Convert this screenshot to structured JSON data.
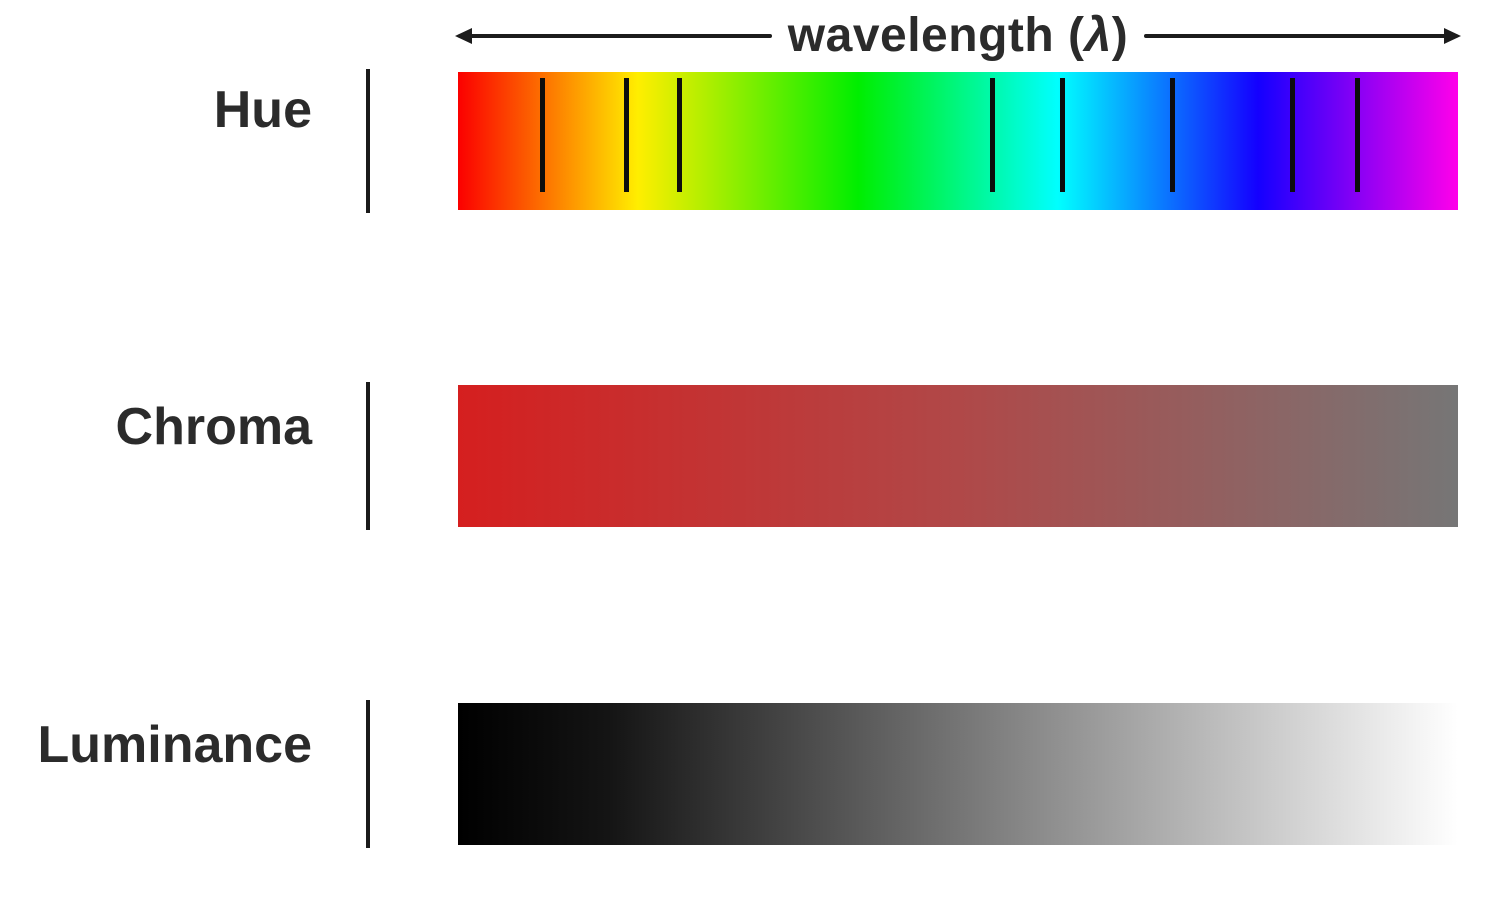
{
  "header": {
    "label_before_lambda": "wavelength (",
    "lambda_symbol": "λ",
    "label_after_lambda": ")"
  },
  "rows": [
    {
      "id": "hue",
      "label": "Hue"
    },
    {
      "id": "chroma",
      "label": "Chroma"
    },
    {
      "id": "luminance",
      "label": "Luminance"
    }
  ],
  "hue_bar": {
    "gradient_stops": [
      "#fb0000 0%",
      "#ffee00 18%",
      "#00ee00 40%",
      "#00ffff 60%",
      "#1400ff 80%",
      "#ff00ea 100%"
    ],
    "tick_positions_pct": [
      8.2,
      16.6,
      21.9,
      53.2,
      60.2,
      71.2,
      83.2,
      89.7
    ]
  },
  "chroma_bar": {
    "gradient_stops": [
      "#d51f1f 0%",
      "#b04848 50%",
      "#767676 100%"
    ]
  },
  "luminance_bar": {
    "gradient_stops": [
      "#000000 0%",
      "#141414 15%",
      "#ffffff 100%"
    ]
  },
  "style": {
    "background": "#ffffff",
    "text_color": "#2b2b2b",
    "arrow_color": "#1c1c1c",
    "separator_color": "#1a1a1a",
    "tick_color": "#0d0d0d"
  }
}
